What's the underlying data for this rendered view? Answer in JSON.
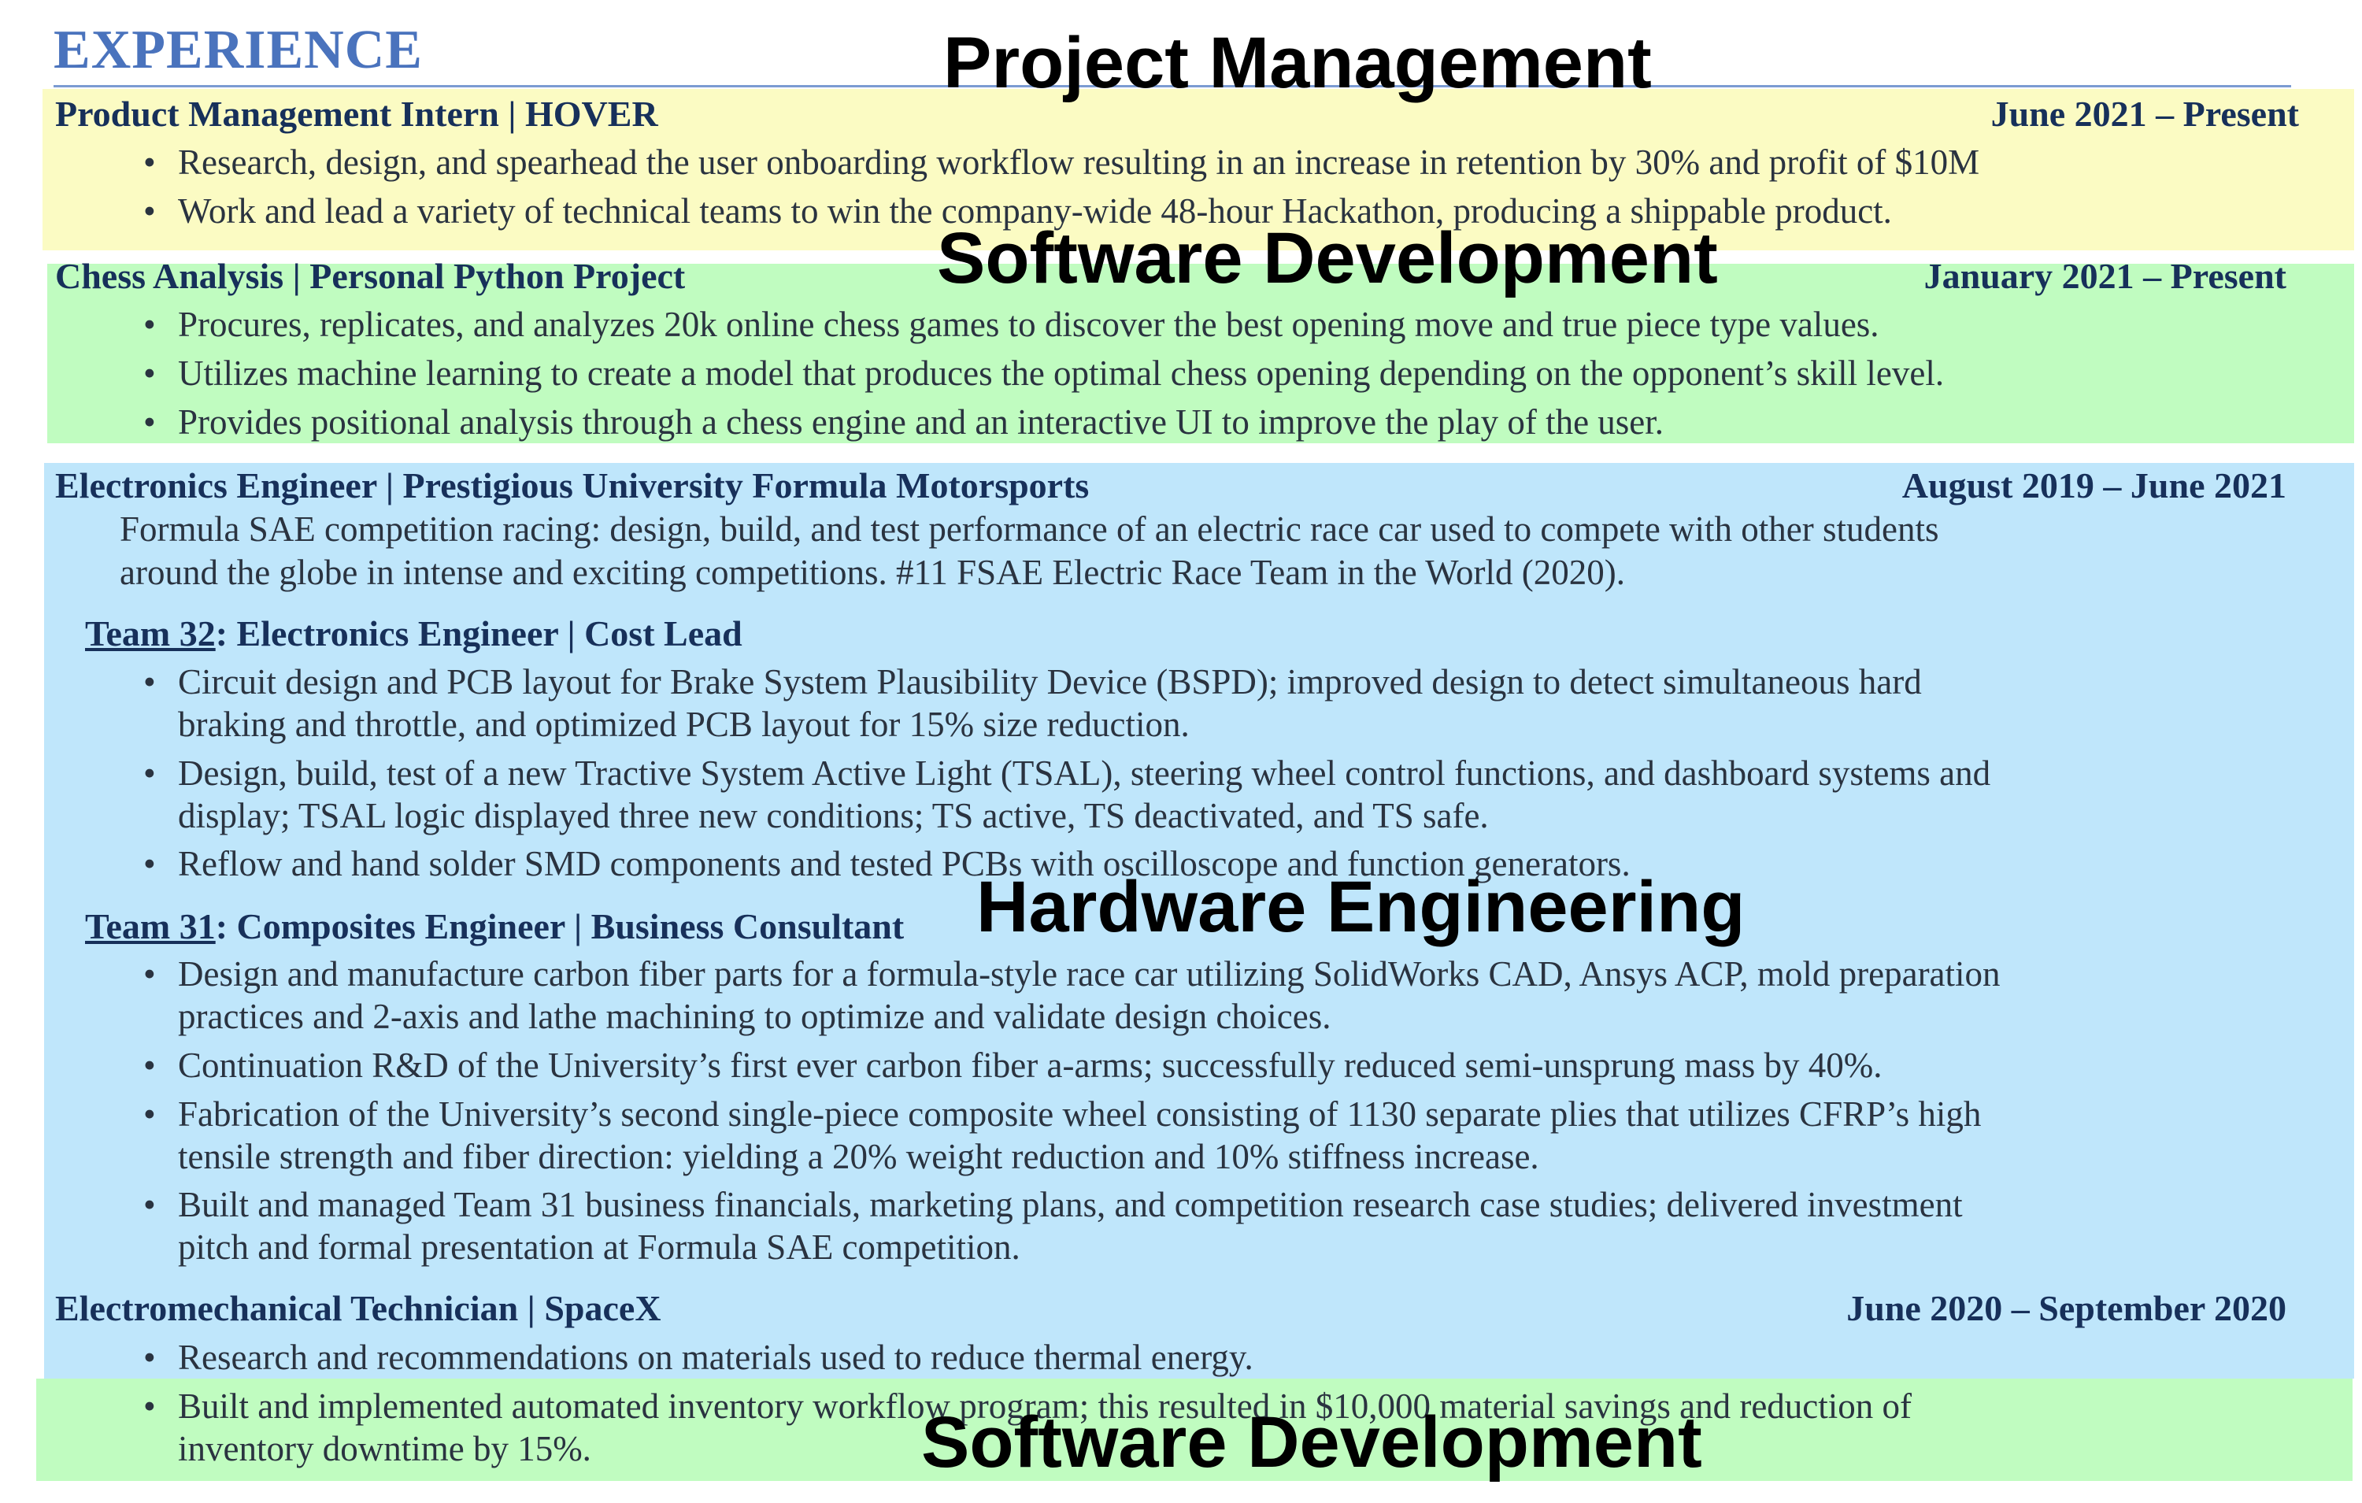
{
  "section": {
    "title": "EXPERIENCE"
  },
  "overlays": {
    "project_management": "Project Management",
    "software_development_1": "Software Development",
    "hardware_engineering": "Hardware Engineering",
    "software_development_2": "Software Development"
  },
  "colors": {
    "yellow_band": "#fbfbc3",
    "green_band": "#c0fcc0",
    "blue_band": "#bfe6fb",
    "heading_blue": "#4a73bd"
  },
  "jobs": {
    "hover": {
      "title": "Product Management Intern | HOVER",
      "date": "June 2021 – Present",
      "bullets": [
        "Research, design, and spearhead the user onboarding workflow resulting in an increase in retention by 30% and profit of $10M",
        "Work and lead a variety of technical teams to win the company-wide 48-hour Hackathon, producing a shippable product."
      ]
    },
    "chess": {
      "title": "Chess Analysis | Personal Python Project",
      "date": "January 2021 – Present",
      "bullets": [
        "Procures, replicates, and analyzes 20k online chess games to discover the best opening move and true piece type values.",
        "Utilizes machine learning to create a model that produces the optimal chess opening depending on the opponent’s skill level.",
        "Provides positional analysis through a chess engine and an interactive UI to improve the play of the user."
      ]
    },
    "formula": {
      "title": "Electronics Engineer | Prestigious University Formula Motorsports",
      "date": "August 2019 – June 2021",
      "description_line1": "Formula SAE competition racing: design, build, and test performance of an electric race car used to compete with other students",
      "description_line2": "around the globe in intense and exciting competitions. #11 FSAE Electric Race Team in the World (2020).",
      "team32": {
        "name": "Team 32",
        "role": ": Electronics Engineer | Cost Lead",
        "bullets": [
          [
            "Circuit design and PCB layout for Brake System Plausibility Device (BSPD); improved design to detect simultaneous hard",
            "braking and throttle, and optimized PCB layout for 15% size reduction."
          ],
          [
            "Design, build, test of a new Tractive System Active Light (TSAL), steering wheel control functions, and dashboard systems and",
            "display; TSAL logic displayed three new conditions; TS active, TS deactivated, and TS safe."
          ],
          [
            "Reflow and hand solder SMD components and tested PCBs with oscilloscope and function generators."
          ]
        ]
      },
      "team31": {
        "name": "Team 31",
        "role": ": Composites Engineer | Business Consultant",
        "bullets": [
          [
            "Design and manufacture carbon fiber parts for a formula-style race car utilizing SolidWorks CAD, Ansys ACP, mold preparation",
            "practices and 2-axis and lathe machining to optimize and validate design choices."
          ],
          [
            "Continuation R&D of the University’s first ever carbon fiber a-arms; successfully reduced semi-unsprung mass by 40%."
          ],
          [
            "Fabrication of the University’s second single-piece composite wheel consisting of 1130 separate plies that utilizes CFRP’s high",
            "tensile strength and fiber direction: yielding a 20% weight reduction and 10% stiffness increase."
          ],
          [
            "Built and managed Team 31 business financials, marketing plans, and competition research case studies; delivered investment",
            "pitch and formal presentation at Formula SAE competition."
          ]
        ]
      }
    },
    "spacex": {
      "title": "Electromechanical Technician | SpaceX",
      "date": "June 2020 – September 2020",
      "bullets": [
        [
          "Research and recommendations on materials used to reduce thermal energy."
        ],
        [
          "Built and implemented automated inventory workflow program; this resulted in $10,000 material savings and reduction of",
          "inventory downtime by 15%."
        ]
      ]
    }
  }
}
